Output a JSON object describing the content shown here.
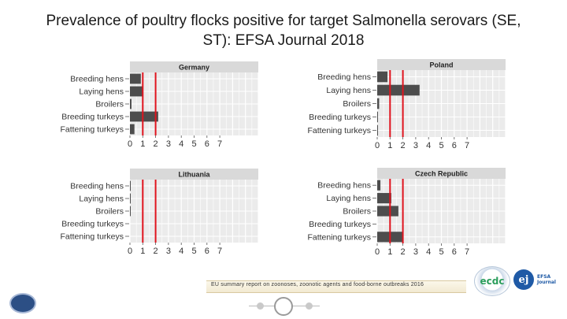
{
  "title_line1": "Prevalence of poultry flocks positive for target Salmonella serovars (SE,",
  "title_line2": "ST): EFSA Journal 2018",
  "footer_caption": "EU summary report on zoonoses, zoonotic agents and food-borne outbreaks 2016",
  "logos": {
    "ecdc": "ecdc",
    "ej": "ej",
    "efsa": "EFSA Journal",
    "left": "logo-emblem"
  },
  "colors": {
    "bar": "#4d4d4d",
    "refline": "#e0141e",
    "panel_bg": "#ebebeb",
    "strip_bg": "#d9d9d9"
  },
  "chart_data": [
    {
      "type": "bar",
      "orientation": "horizontal",
      "title": "Germany",
      "categories": [
        "Breeding hens",
        "Laying hens",
        "Broilers",
        "Breeding turkeys",
        "Fattening turkeys"
      ],
      "values": [
        0.85,
        0.95,
        0.12,
        2.2,
        0.35
      ],
      "xticks": [
        "0",
        "1",
        "2",
        "3",
        "4",
        "5",
        "6",
        "7"
      ],
      "xlim": [
        0,
        10
      ],
      "reference_lines": [
        1,
        2
      ],
      "grid": true
    },
    {
      "type": "bar",
      "orientation": "horizontal",
      "title": "Poland",
      "categories": [
        "Breeding hens",
        "Laying hens",
        "Broilers",
        "Breeding turkeys",
        "Fattening turkeys"
      ],
      "values": [
        0.8,
        3.3,
        0.15,
        0.05,
        0.05
      ],
      "xticks": [
        "0",
        "1",
        "2",
        "3",
        "4",
        "5",
        "6",
        "7"
      ],
      "xlim": [
        0,
        10
      ],
      "reference_lines": [
        1,
        2
      ],
      "grid": true
    },
    {
      "type": "bar",
      "orientation": "horizontal",
      "title": "Lithuania",
      "categories": [
        "Breeding hens",
        "Laying hens",
        "Broilers",
        "Breeding turkeys",
        "Fattening turkeys"
      ],
      "values": [
        0.05,
        0.05,
        0.05,
        0,
        0
      ],
      "xticks": [
        "0",
        "1",
        "2",
        "3",
        "4",
        "5",
        "6",
        "7"
      ],
      "xlim": [
        0,
        10
      ],
      "reference_lines": [
        1,
        2
      ],
      "grid": true
    },
    {
      "type": "bar",
      "orientation": "horizontal",
      "title": "Czech Republic",
      "categories": [
        "Breeding hens",
        "Laying hens",
        "Broilers",
        "Breeding turkeys",
        "Fattening turkeys"
      ],
      "values": [
        0.25,
        1.1,
        1.65,
        0,
        2.0
      ],
      "xticks": [
        "0",
        "1",
        "2",
        "3",
        "4",
        "5",
        "6",
        "7"
      ],
      "xlim": [
        0,
        10
      ],
      "reference_lines": [
        1,
        2
      ],
      "grid": true
    }
  ]
}
